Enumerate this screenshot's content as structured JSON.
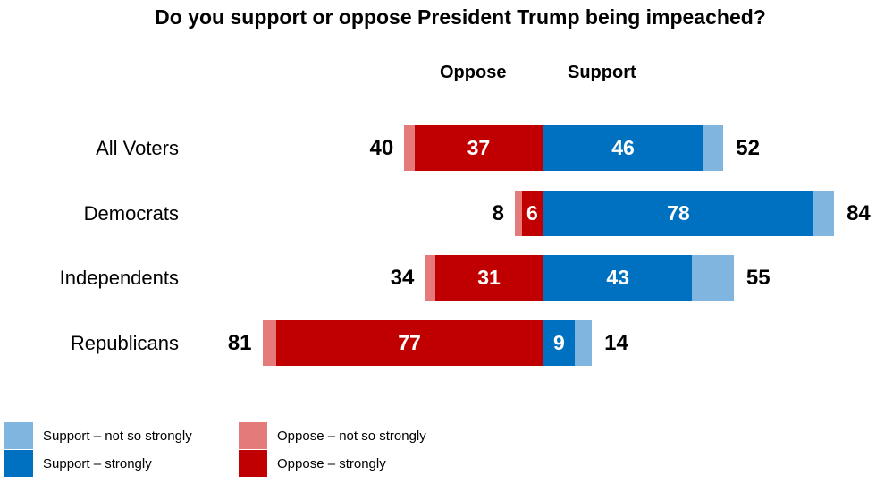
{
  "chart_data": {
    "type": "bar",
    "orientation": "horizontal-diverging",
    "stacked": true,
    "title": "Do you support or oppose President Trump being impeached?",
    "side_labels": {
      "oppose": "Oppose",
      "support": "Support"
    },
    "categories": [
      "All Voters",
      "Democrats",
      "Independents",
      "Republicans"
    ],
    "series": [
      {
        "name": "Support – strongly",
        "side": "support",
        "values": [
          46,
          78,
          43,
          9
        ],
        "color": "#0070C0"
      },
      {
        "name": "Support – not so strongly",
        "side": "support",
        "values": [
          6,
          6,
          12,
          5
        ],
        "color": "#7FB5DF"
      },
      {
        "name": "Oppose – strongly",
        "side": "oppose",
        "values": [
          37,
          6,
          31,
          77
        ],
        "color": "#C00000"
      },
      {
        "name": "Oppose – not so strongly",
        "side": "oppose",
        "values": [
          3,
          2,
          3,
          4
        ],
        "color": "#E47A7A"
      }
    ],
    "support_totals": [
      52,
      84,
      55,
      14
    ],
    "oppose_totals": [
      40,
      8,
      34,
      81
    ],
    "legend_position": "bottom-left",
    "grid": false
  }
}
